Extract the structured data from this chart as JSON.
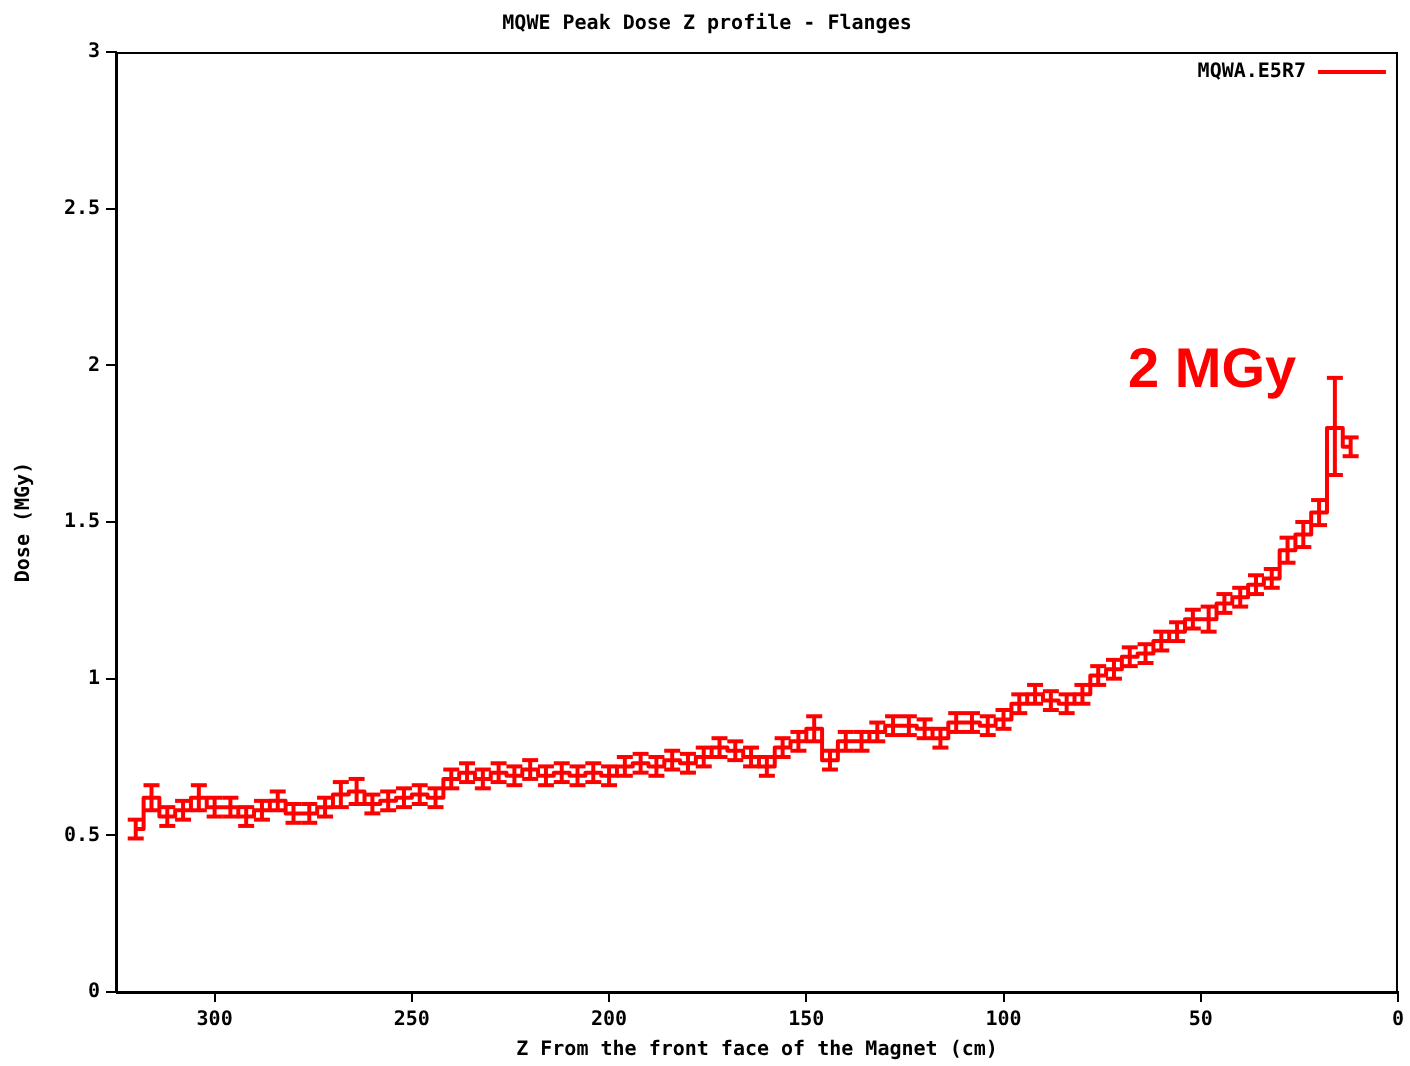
{
  "chart_data": {
    "type": "step",
    "title": "MQWE Peak Dose Z profile - Flanges",
    "xlabel": "Z From the front face of the Magnet (cm)",
    "ylabel": "Dose (MGy)",
    "x": [
      320,
      316,
      312,
      308,
      304,
      300,
      296,
      292,
      288,
      284,
      280,
      276,
      272,
      268,
      264,
      260,
      256,
      252,
      248,
      244,
      240,
      236,
      232,
      228,
      224,
      220,
      216,
      212,
      208,
      204,
      200,
      196,
      192,
      188,
      184,
      180,
      176,
      172,
      168,
      164,
      160,
      156,
      152,
      148,
      144,
      140,
      136,
      132,
      128,
      124,
      120,
      116,
      112,
      108,
      104,
      100,
      96,
      92,
      88,
      84,
      80,
      76,
      72,
      68,
      64,
      60,
      56,
      52,
      48,
      44,
      40,
      36,
      32,
      28,
      24,
      20,
      16,
      12
    ],
    "series": [
      {
        "name": "MQWA.E5R7",
        "color": "#ff0000",
        "values": [
          0.52,
          0.62,
          0.56,
          0.58,
          0.62,
          0.59,
          0.59,
          0.56,
          0.58,
          0.61,
          0.57,
          0.57,
          0.59,
          0.63,
          0.64,
          0.6,
          0.61,
          0.62,
          0.63,
          0.62,
          0.68,
          0.7,
          0.68,
          0.7,
          0.69,
          0.71,
          0.69,
          0.7,
          0.69,
          0.7,
          0.69,
          0.72,
          0.73,
          0.72,
          0.74,
          0.73,
          0.75,
          0.78,
          0.77,
          0.75,
          0.72,
          0.78,
          0.8,
          0.84,
          0.74,
          0.8,
          0.8,
          0.83,
          0.85,
          0.85,
          0.84,
          0.81,
          0.86,
          0.86,
          0.85,
          0.87,
          0.92,
          0.95,
          0.93,
          0.92,
          0.95,
          1.01,
          1.03,
          1.07,
          1.08,
          1.12,
          1.15,
          1.19,
          1.19,
          1.24,
          1.26,
          1.3,
          1.32,
          1.41,
          1.46,
          1.53,
          1.8,
          1.74
        ],
        "errors": [
          0.03,
          0.04,
          0.03,
          0.03,
          0.04,
          0.03,
          0.03,
          0.03,
          0.03,
          0.03,
          0.03,
          0.03,
          0.03,
          0.04,
          0.04,
          0.03,
          0.03,
          0.03,
          0.03,
          0.03,
          0.03,
          0.03,
          0.03,
          0.03,
          0.03,
          0.03,
          0.03,
          0.03,
          0.03,
          0.03,
          0.03,
          0.03,
          0.03,
          0.03,
          0.03,
          0.03,
          0.03,
          0.03,
          0.03,
          0.03,
          0.03,
          0.03,
          0.03,
          0.04,
          0.03,
          0.03,
          0.03,
          0.03,
          0.03,
          0.03,
          0.03,
          0.03,
          0.03,
          0.03,
          0.03,
          0.03,
          0.03,
          0.03,
          0.03,
          0.03,
          0.03,
          0.03,
          0.03,
          0.03,
          0.03,
          0.03,
          0.03,
          0.03,
          0.04,
          0.03,
          0.03,
          0.03,
          0.03,
          0.04,
          0.04,
          0.04,
          [
            1.65,
            1.96
          ],
          0.03
        ]
      }
    ],
    "xlim": [
      325,
      0
    ],
    "xticks": [
      300,
      250,
      200,
      150,
      100,
      50,
      0
    ],
    "ylim": [
      0,
      3
    ],
    "yticks": [
      0,
      0.5,
      1,
      1.5,
      2,
      2.5,
      3
    ],
    "grid": false,
    "legend": "top right",
    "line_style": "solid",
    "annotations": [
      "2 MGy"
    ]
  }
}
